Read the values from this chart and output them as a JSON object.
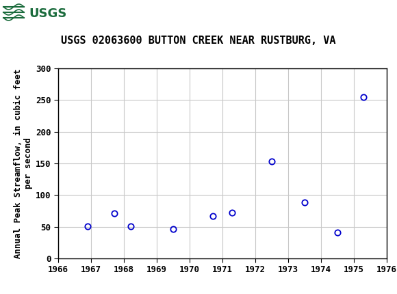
{
  "title": "USGS 02063600 BUTTON CREEK NEAR RUSTBURG, VA",
  "xlabel": "",
  "ylabel": "Annual Peak Streamflow, in cubic feet\nper second",
  "xlim": [
    1966,
    1976
  ],
  "ylim": [
    0,
    300
  ],
  "xticks": [
    1966,
    1967,
    1968,
    1969,
    1970,
    1971,
    1972,
    1973,
    1974,
    1975,
    1976
  ],
  "yticks": [
    0,
    50,
    100,
    150,
    200,
    250,
    300
  ],
  "x_data": [
    1966.9,
    1967.7,
    1968.2,
    1969.5,
    1970.7,
    1971.3,
    1972.5,
    1973.5,
    1974.5,
    1975.3
  ],
  "y_data": [
    51,
    71,
    51,
    46,
    67,
    72,
    153,
    88,
    41,
    255
  ],
  "marker_color": "#0000cc",
  "marker_face": "none",
  "marker_size": 6,
  "marker_style": "o",
  "grid_color": "#c8c8c8",
  "bg_color": "#ffffff",
  "plot_bg_color": "#ffffff",
  "header_bg_color": "#1a6b3c",
  "title_fontsize": 11,
  "ylabel_fontsize": 9,
  "tick_fontsize": 9,
  "font_family": "monospace",
  "header_text": "USGS",
  "header_text_color": "#ffffff"
}
